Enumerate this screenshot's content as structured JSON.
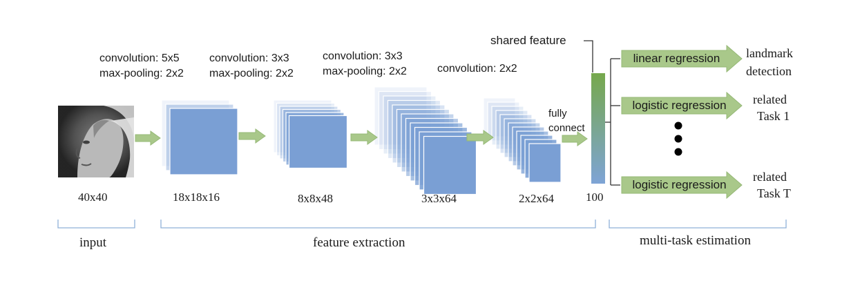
{
  "colors": {
    "block": "#7a9fd4",
    "arrow": "#a9c88a",
    "arrow_stroke": "#95b876",
    "bracket": "#8fb0d8",
    "bar_top": "#76a84c",
    "bar_bottom": "#7ea4d6",
    "dot": "#000000"
  },
  "stages": [
    {
      "name": "input",
      "size_label": "40x40",
      "ops": []
    },
    {
      "name": "conv1",
      "size_label": "18x18x16",
      "ops": [
        "convolution: 5x5",
        "max-pooling: 2x2"
      ]
    },
    {
      "name": "conv2",
      "size_label": "8x8x48",
      "ops": [
        "convolution: 3x3",
        "max-pooling: 2x2"
      ]
    },
    {
      "name": "conv3",
      "size_label": "3x3x64",
      "ops": [
        "convolution: 3x3",
        "max-pooling: 2x2"
      ]
    },
    {
      "name": "conv4",
      "size_label": "2x2x64",
      "ops": [
        "convolution: 2x2"
      ]
    }
  ],
  "fully_connect_label": [
    "fully",
    "connect"
  ],
  "shared_feature_label": "shared feature",
  "feature_size_label": "100",
  "tasks": [
    {
      "name": "linear regression",
      "target": [
        "landmark",
        "detection"
      ]
    },
    {
      "name": "logistic regression",
      "target": [
        "related",
        "Task 1"
      ]
    },
    {
      "name": "logistic regression",
      "target": [
        "related",
        "Task T"
      ]
    }
  ],
  "sections": {
    "input": "input",
    "feature_extraction": "feature extraction",
    "multi_task": "multi-task estimation"
  },
  "image_icon": "face-photo-icon"
}
